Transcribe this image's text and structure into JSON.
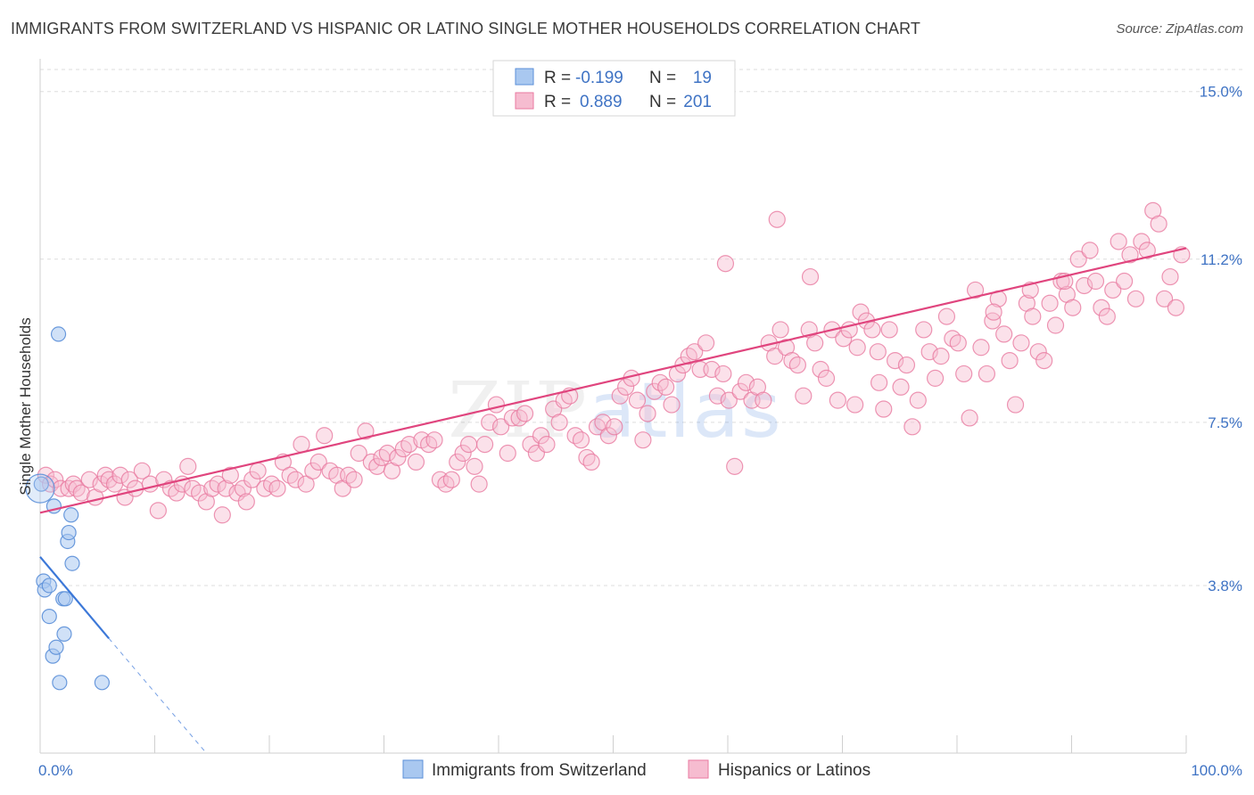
{
  "title": "IMMIGRANTS FROM SWITZERLAND VS HISPANIC OR LATINO SINGLE MOTHER HOUSEHOLDS CORRELATION CHART",
  "source": "Source: ZipAtlas.com",
  "watermark": "ZIPatlas",
  "colors": {
    "blue": "#a9c8f0",
    "blue_stroke": "#5b8fd8",
    "blue_line": "#3c78d8",
    "pink": "#f6bcd0",
    "pink_stroke": "#e97aa0",
    "pink_line": "#e0457e",
    "tick_text": "#3f73c4",
    "grid": "#dddddd"
  },
  "legend": {
    "rows": [
      {
        "r_label": "R =",
        "r_value": "-0.199",
        "n_label": "N =",
        "n_value": "19"
      },
      {
        "r_label": "R =",
        "r_value": "0.889",
        "n_label": "N =",
        "n_value": "201"
      }
    ]
  },
  "bottom_legend": {
    "series1": "Immigrants from Switzerland",
    "series2": "Hispanics or Latinos"
  },
  "chart_data": {
    "type": "scatter",
    "title": "IMMIGRANTS FROM SWITZERLAND VS HISPANIC OR LATINO SINGLE MOTHER HOUSEHOLDS CORRELATION CHART",
    "xlabel": "",
    "ylabel": "Single Mother Households",
    "xlim": [
      0,
      100
    ],
    "ylim": [
      0,
      15.5
    ],
    "x_tick_labels": [
      "0.0%",
      "100.0%"
    ],
    "y_ticks": [
      3.8,
      7.5,
      11.2,
      15.0
    ],
    "y_tick_labels": [
      "3.8%",
      "7.5%",
      "11.2%",
      "15.0%"
    ],
    "grid": true,
    "series": [
      {
        "name": "Immigrants from Switzerland",
        "trend": {
          "x": [
            0.0,
            6.0
          ],
          "y": [
            4.45,
            2.6
          ],
          "dashed_to": [
            14.5,
            0.0
          ]
        },
        "points": [
          [
            0.1,
            6.1
          ],
          [
            0.3,
            3.9
          ],
          [
            0.4,
            3.7
          ],
          [
            0.8,
            3.8
          ],
          [
            0.8,
            3.1
          ],
          [
            1.1,
            2.2
          ],
          [
            1.2,
            5.6
          ],
          [
            1.4,
            2.4
          ],
          [
            1.6,
            9.5
          ],
          [
            1.7,
            1.6
          ],
          [
            2.0,
            3.5
          ],
          [
            2.1,
            2.7
          ],
          [
            2.2,
            3.5
          ],
          [
            2.4,
            4.8
          ],
          [
            2.5,
            5.0
          ],
          [
            2.7,
            5.4
          ],
          [
            2.8,
            4.3
          ],
          [
            5.4,
            1.6
          ],
          [
            0.0,
            6.0
          ]
        ]
      },
      {
        "name": "Hispanics or Latinos",
        "trend": {
          "x": [
            0.0,
            100.0
          ],
          "y": [
            5.45,
            11.45
          ]
        },
        "points": [
          [
            0.5,
            6.3
          ],
          [
            0.9,
            6.1
          ],
          [
            1.3,
            6.2
          ],
          [
            1.8,
            6.0
          ],
          [
            2.5,
            6.0
          ],
          [
            2.9,
            6.1
          ],
          [
            3.2,
            6.0
          ],
          [
            3.6,
            5.9
          ],
          [
            4.3,
            6.2
          ],
          [
            4.8,
            5.8
          ],
          [
            5.3,
            6.1
          ],
          [
            5.7,
            6.3
          ],
          [
            6.0,
            6.2
          ],
          [
            6.5,
            6.1
          ],
          [
            7.0,
            6.3
          ],
          [
            7.4,
            5.8
          ],
          [
            7.8,
            6.2
          ],
          [
            8.3,
            6.0
          ],
          [
            8.9,
            6.4
          ],
          [
            9.6,
            6.1
          ],
          [
            10.3,
            5.5
          ],
          [
            10.8,
            6.2
          ],
          [
            11.4,
            6.0
          ],
          [
            11.9,
            5.9
          ],
          [
            12.4,
            6.1
          ],
          [
            12.9,
            6.5
          ],
          [
            13.3,
            6.0
          ],
          [
            13.9,
            5.9
          ],
          [
            14.5,
            5.7
          ],
          [
            15.0,
            6.0
          ],
          [
            15.5,
            6.1
          ],
          [
            15.9,
            5.4
          ],
          [
            16.2,
            6.0
          ],
          [
            16.6,
            6.3
          ],
          [
            17.2,
            5.9
          ],
          [
            17.7,
            6.0
          ],
          [
            18.0,
            5.7
          ],
          [
            18.5,
            6.2
          ],
          [
            19.0,
            6.4
          ],
          [
            19.6,
            6.0
          ],
          [
            20.2,
            6.1
          ],
          [
            20.7,
            6.0
          ],
          [
            21.2,
            6.6
          ],
          [
            21.8,
            6.3
          ],
          [
            22.3,
            6.2
          ],
          [
            22.8,
            7.0
          ],
          [
            23.2,
            6.1
          ],
          [
            23.8,
            6.4
          ],
          [
            24.3,
            6.6
          ],
          [
            24.8,
            7.2
          ],
          [
            25.3,
            6.4
          ],
          [
            25.9,
            6.3
          ],
          [
            26.4,
            6.0
          ],
          [
            26.9,
            6.3
          ],
          [
            27.4,
            6.2
          ],
          [
            27.8,
            6.8
          ],
          [
            28.4,
            7.3
          ],
          [
            28.9,
            6.6
          ],
          [
            29.4,
            6.5
          ],
          [
            29.8,
            6.7
          ],
          [
            30.3,
            6.8
          ],
          [
            30.7,
            6.4
          ],
          [
            31.2,
            6.7
          ],
          [
            31.7,
            6.9
          ],
          [
            32.2,
            7.0
          ],
          [
            32.8,
            6.6
          ],
          [
            33.3,
            7.1
          ],
          [
            33.9,
            7.0
          ],
          [
            34.4,
            7.1
          ],
          [
            34.9,
            6.2
          ],
          [
            35.4,
            6.1
          ],
          [
            35.9,
            6.2
          ],
          [
            36.4,
            6.6
          ],
          [
            36.9,
            6.8
          ],
          [
            37.4,
            7.0
          ],
          [
            37.9,
            6.5
          ],
          [
            38.3,
            6.1
          ],
          [
            38.8,
            7.0
          ],
          [
            39.2,
            7.5
          ],
          [
            39.8,
            7.9
          ],
          [
            40.2,
            7.4
          ],
          [
            40.8,
            6.8
          ],
          [
            41.2,
            7.6
          ],
          [
            41.8,
            7.6
          ],
          [
            42.3,
            7.7
          ],
          [
            42.8,
            7.0
          ],
          [
            43.3,
            6.8
          ],
          [
            43.7,
            7.2
          ],
          [
            44.2,
            7.0
          ],
          [
            44.8,
            7.8
          ],
          [
            45.3,
            7.5
          ],
          [
            45.7,
            8.0
          ],
          [
            46.2,
            8.1
          ],
          [
            46.7,
            7.2
          ],
          [
            47.2,
            7.1
          ],
          [
            47.7,
            6.7
          ],
          [
            48.1,
            6.6
          ],
          [
            48.6,
            7.4
          ],
          [
            49.1,
            7.5
          ],
          [
            49.6,
            7.2
          ],
          [
            50.1,
            7.4
          ],
          [
            50.6,
            8.1
          ],
          [
            51.1,
            8.3
          ],
          [
            51.6,
            8.5
          ],
          [
            52.1,
            8.0
          ],
          [
            52.6,
            7.1
          ],
          [
            53.0,
            7.7
          ],
          [
            53.6,
            8.2
          ],
          [
            54.1,
            8.4
          ],
          [
            54.6,
            8.3
          ],
          [
            55.1,
            7.9
          ],
          [
            55.6,
            8.6
          ],
          [
            56.1,
            8.8
          ],
          [
            56.6,
            9.0
          ],
          [
            57.1,
            9.1
          ],
          [
            57.6,
            8.7
          ],
          [
            58.1,
            9.3
          ],
          [
            58.6,
            8.7
          ],
          [
            59.1,
            8.1
          ],
          [
            59.6,
            8.6
          ],
          [
            60.1,
            8.0
          ],
          [
            60.6,
            6.5
          ],
          [
            61.1,
            8.2
          ],
          [
            61.6,
            8.4
          ],
          [
            62.1,
            8.0
          ],
          [
            62.6,
            8.3
          ],
          [
            63.1,
            8.0
          ],
          [
            63.6,
            9.3
          ],
          [
            64.1,
            9.0
          ],
          [
            64.6,
            9.6
          ],
          [
            65.1,
            9.2
          ],
          [
            65.6,
            8.9
          ],
          [
            66.1,
            8.8
          ],
          [
            66.6,
            8.1
          ],
          [
            67.1,
            9.6
          ],
          [
            67.6,
            9.3
          ],
          [
            68.1,
            8.7
          ],
          [
            68.6,
            8.5
          ],
          [
            69.1,
            9.6
          ],
          [
            69.6,
            8.0
          ],
          [
            70.1,
            9.4
          ],
          [
            70.6,
            9.6
          ],
          [
            71.1,
            7.9
          ],
          [
            71.6,
            10.0
          ],
          [
            72.1,
            9.8
          ],
          [
            72.6,
            9.6
          ],
          [
            73.1,
            9.1
          ],
          [
            73.6,
            7.8
          ],
          [
            74.1,
            9.6
          ],
          [
            74.6,
            8.9
          ],
          [
            75.1,
            8.3
          ],
          [
            75.6,
            8.8
          ],
          [
            76.1,
            7.4
          ],
          [
            76.6,
            8.0
          ],
          [
            77.1,
            9.6
          ],
          [
            77.6,
            9.1
          ],
          [
            78.1,
            8.5
          ],
          [
            78.6,
            9.0
          ],
          [
            79.1,
            9.9
          ],
          [
            79.6,
            9.4
          ],
          [
            80.1,
            9.3
          ],
          [
            80.6,
            8.6
          ],
          [
            81.1,
            7.6
          ],
          [
            81.6,
            10.5
          ],
          [
            82.1,
            9.2
          ],
          [
            82.6,
            8.6
          ],
          [
            83.1,
            9.8
          ],
          [
            83.6,
            10.3
          ],
          [
            84.1,
            9.5
          ],
          [
            84.6,
            8.9
          ],
          [
            85.1,
            7.9
          ],
          [
            85.6,
            9.3
          ],
          [
            86.1,
            10.2
          ],
          [
            86.6,
            9.9
          ],
          [
            87.1,
            9.1
          ],
          [
            87.6,
            8.9
          ],
          [
            88.1,
            10.2
          ],
          [
            88.6,
            9.7
          ],
          [
            89.1,
            10.7
          ],
          [
            89.6,
            10.4
          ],
          [
            90.1,
            10.1
          ],
          [
            90.6,
            11.2
          ],
          [
            91.1,
            10.6
          ],
          [
            91.6,
            11.4
          ],
          [
            92.1,
            10.7
          ],
          [
            92.6,
            10.1
          ],
          [
            93.1,
            9.9
          ],
          [
            93.6,
            10.5
          ],
          [
            94.1,
            11.6
          ],
          [
            94.6,
            10.7
          ],
          [
            95.1,
            11.3
          ],
          [
            95.6,
            10.3
          ],
          [
            96.1,
            11.6
          ],
          [
            96.6,
            11.4
          ],
          [
            97.1,
            12.3
          ],
          [
            97.6,
            12.0
          ],
          [
            98.1,
            10.3
          ],
          [
            98.6,
            10.8
          ],
          [
            99.1,
            10.1
          ],
          [
            99.6,
            11.3
          ],
          [
            71.3,
            9.2
          ],
          [
            73.2,
            8.4
          ],
          [
            67.2,
            10.8
          ],
          [
            59.8,
            11.1
          ],
          [
            64.3,
            12.1
          ],
          [
            83.2,
            10.0
          ],
          [
            86.4,
            10.5
          ],
          [
            89.4,
            10.7
          ]
        ]
      }
    ]
  }
}
